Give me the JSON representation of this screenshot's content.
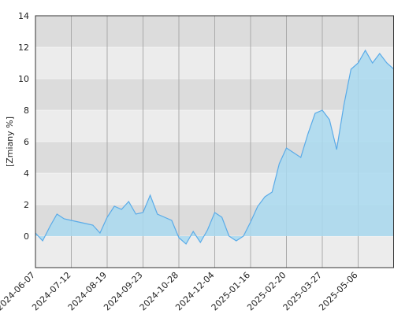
{
  "chart_data": {
    "type": "area",
    "y_label": "[Zmiany %]",
    "categories": [
      "2024-06-07",
      null,
      null,
      null,
      null,
      "2024-07-12",
      null,
      null,
      null,
      null,
      "2024-08-19",
      null,
      null,
      null,
      null,
      "2024-09-23",
      null,
      null,
      null,
      null,
      "2024-10-28",
      null,
      null,
      null,
      null,
      "2024-12-04",
      null,
      null,
      null,
      null,
      "2025-01-16",
      null,
      null,
      null,
      null,
      "2025-02-20",
      null,
      null,
      null,
      null,
      "2025-03-27",
      null,
      null,
      null,
      null,
      "2025-05-06",
      null,
      null,
      null,
      null,
      null
    ],
    "values": [
      0.2,
      -0.3,
      0.6,
      1.4,
      1.1,
      1.0,
      0.9,
      0.8,
      0.7,
      0.2,
      1.2,
      1.9,
      1.7,
      2.2,
      1.4,
      1.5,
      2.6,
      1.4,
      1.2,
      1.0,
      -0.1,
      -0.5,
      0.3,
      -0.4,
      0.4,
      1.5,
      1.2,
      0.0,
      -0.3,
      0.0,
      0.9,
      1.9,
      2.5,
      2.8,
      4.6,
      5.6,
      5.3,
      5.0,
      6.5,
      7.8,
      8.0,
      7.4,
      5.5,
      8.3,
      10.6,
      11.0,
      11.8,
      11.0,
      11.6,
      11.0,
      10.6
    ],
    "color": "#5aabe8",
    "fill": "#a9d9f0",
    "ylim": [
      -2,
      14
    ],
    "yticks": [
      0,
      2,
      4,
      6,
      8,
      10,
      12,
      14
    ],
    "grid": true
  }
}
